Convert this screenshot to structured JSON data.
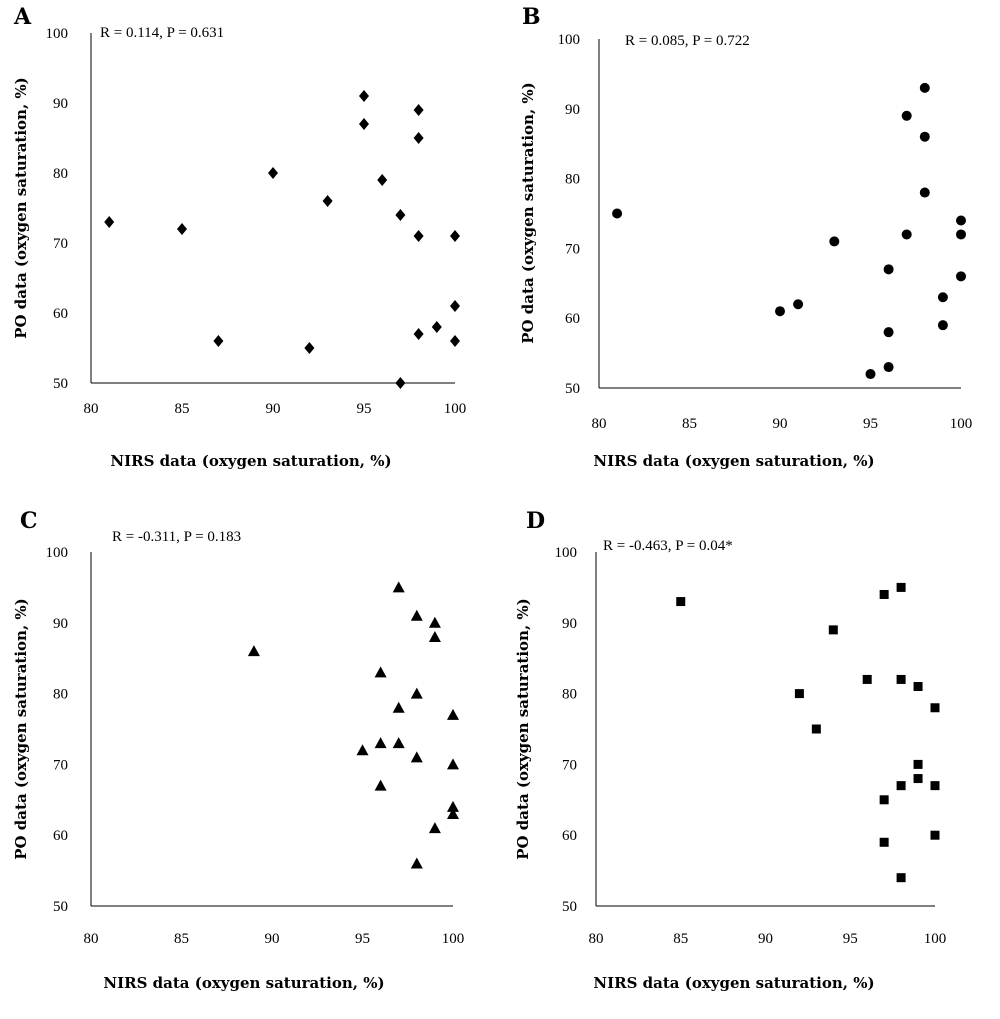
{
  "chart_data": [
    {
      "type": "scatter",
      "panel": "A",
      "annotation": "R = 0.114, P = 0.631",
      "xlabel": "NIRS data (oxygen saturation, %)",
      "ylabel": "PO data (oxygen saturation, %)",
      "marker": "diamond",
      "xlim": [
        80,
        100
      ],
      "ylim": [
        50,
        100
      ],
      "xticks": [
        80,
        85,
        90,
        95,
        100
      ],
      "yticks": [
        50,
        60,
        70,
        80,
        90,
        100
      ],
      "points": [
        {
          "x": 81,
          "y": 73
        },
        {
          "x": 85,
          "y": 72
        },
        {
          "x": 87,
          "y": 56
        },
        {
          "x": 90,
          "y": 80
        },
        {
          "x": 92,
          "y": 55
        },
        {
          "x": 93,
          "y": 76
        },
        {
          "x": 95,
          "y": 91
        },
        {
          "x": 95,
          "y": 87
        },
        {
          "x": 96,
          "y": 79
        },
        {
          "x": 97,
          "y": 74
        },
        {
          "x": 97,
          "y": 50
        },
        {
          "x": 98,
          "y": 89
        },
        {
          "x": 98,
          "y": 85
        },
        {
          "x": 98,
          "y": 71
        },
        {
          "x": 98,
          "y": 57
        },
        {
          "x": 99,
          "y": 58
        },
        {
          "x": 100,
          "y": 71
        },
        {
          "x": 100,
          "y": 61
        },
        {
          "x": 100,
          "y": 56
        }
      ]
    },
    {
      "type": "scatter",
      "panel": "B",
      "annotation": "R = 0.085, P = 0.722",
      "xlabel": "NIRS data (oxygen saturation, %)",
      "ylabel": "PO data (oxygen saturation, %)",
      "marker": "circle",
      "xlim": [
        80,
        100
      ],
      "ylim": [
        50,
        100
      ],
      "xticks": [
        80,
        85,
        90,
        95,
        100
      ],
      "yticks": [
        50,
        60,
        70,
        80,
        90,
        100
      ],
      "points": [
        {
          "x": 81,
          "y": 75
        },
        {
          "x": 90,
          "y": 61
        },
        {
          "x": 91,
          "y": 62
        },
        {
          "x": 93,
          "y": 71
        },
        {
          "x": 95,
          "y": 52
        },
        {
          "x": 96,
          "y": 67
        },
        {
          "x": 96,
          "y": 58
        },
        {
          "x": 96,
          "y": 53
        },
        {
          "x": 97,
          "y": 89
        },
        {
          "x": 97,
          "y": 72
        },
        {
          "x": 98,
          "y": 93
        },
        {
          "x": 98,
          "y": 86
        },
        {
          "x": 98,
          "y": 78
        },
        {
          "x": 99,
          "y": 63
        },
        {
          "x": 99,
          "y": 59
        },
        {
          "x": 100,
          "y": 74
        },
        {
          "x": 100,
          "y": 72
        },
        {
          "x": 100,
          "y": 66
        }
      ]
    },
    {
      "type": "scatter",
      "panel": "C",
      "annotation": "R = -0.311, P = 0.183",
      "xlabel": "NIRS data (oxygen saturation, %)",
      "ylabel": "PO data (oxygen saturation, %)",
      "marker": "triangle",
      "xlim": [
        80,
        100
      ],
      "ylim": [
        50,
        100
      ],
      "xticks": [
        80,
        85,
        90,
        95,
        100
      ],
      "yticks": [
        50,
        60,
        70,
        80,
        90,
        100
      ],
      "points": [
        {
          "x": 89,
          "y": 86
        },
        {
          "x": 95,
          "y": 72
        },
        {
          "x": 96,
          "y": 83
        },
        {
          "x": 96,
          "y": 73
        },
        {
          "x": 96,
          "y": 67
        },
        {
          "x": 97,
          "y": 95
        },
        {
          "x": 97,
          "y": 78
        },
        {
          "x": 97,
          "y": 73
        },
        {
          "x": 98,
          "y": 91
        },
        {
          "x": 98,
          "y": 80
        },
        {
          "x": 98,
          "y": 71
        },
        {
          "x": 98,
          "y": 56
        },
        {
          "x": 99,
          "y": 90
        },
        {
          "x": 99,
          "y": 88
        },
        {
          "x": 99,
          "y": 61
        },
        {
          "x": 100,
          "y": 77
        },
        {
          "x": 100,
          "y": 70
        },
        {
          "x": 100,
          "y": 64
        },
        {
          "x": 100,
          "y": 63
        }
      ]
    },
    {
      "type": "scatter",
      "panel": "D",
      "annotation": "R = -0.463, P = 0.04*",
      "xlabel": "NIRS data (oxygen saturation, %)",
      "ylabel": "PO data (oxygen saturation, %)",
      "marker": "square",
      "xlim": [
        80,
        100
      ],
      "ylim": [
        50,
        100
      ],
      "xticks": [
        80,
        85,
        90,
        95,
        100
      ],
      "yticks": [
        50,
        60,
        70,
        80,
        90,
        100
      ],
      "points": [
        {
          "x": 85,
          "y": 93
        },
        {
          "x": 92,
          "y": 80
        },
        {
          "x": 93,
          "y": 75
        },
        {
          "x": 94,
          "y": 89
        },
        {
          "x": 96,
          "y": 82
        },
        {
          "x": 97,
          "y": 94
        },
        {
          "x": 97,
          "y": 65
        },
        {
          "x": 97,
          "y": 59
        },
        {
          "x": 98,
          "y": 95
        },
        {
          "x": 98,
          "y": 82
        },
        {
          "x": 98,
          "y": 67
        },
        {
          "x": 98,
          "y": 54
        },
        {
          "x": 99,
          "y": 81
        },
        {
          "x": 99,
          "y": 70
        },
        {
          "x": 99,
          "y": 68
        },
        {
          "x": 100,
          "y": 78
        },
        {
          "x": 100,
          "y": 67
        },
        {
          "x": 100,
          "y": 60
        }
      ]
    }
  ]
}
